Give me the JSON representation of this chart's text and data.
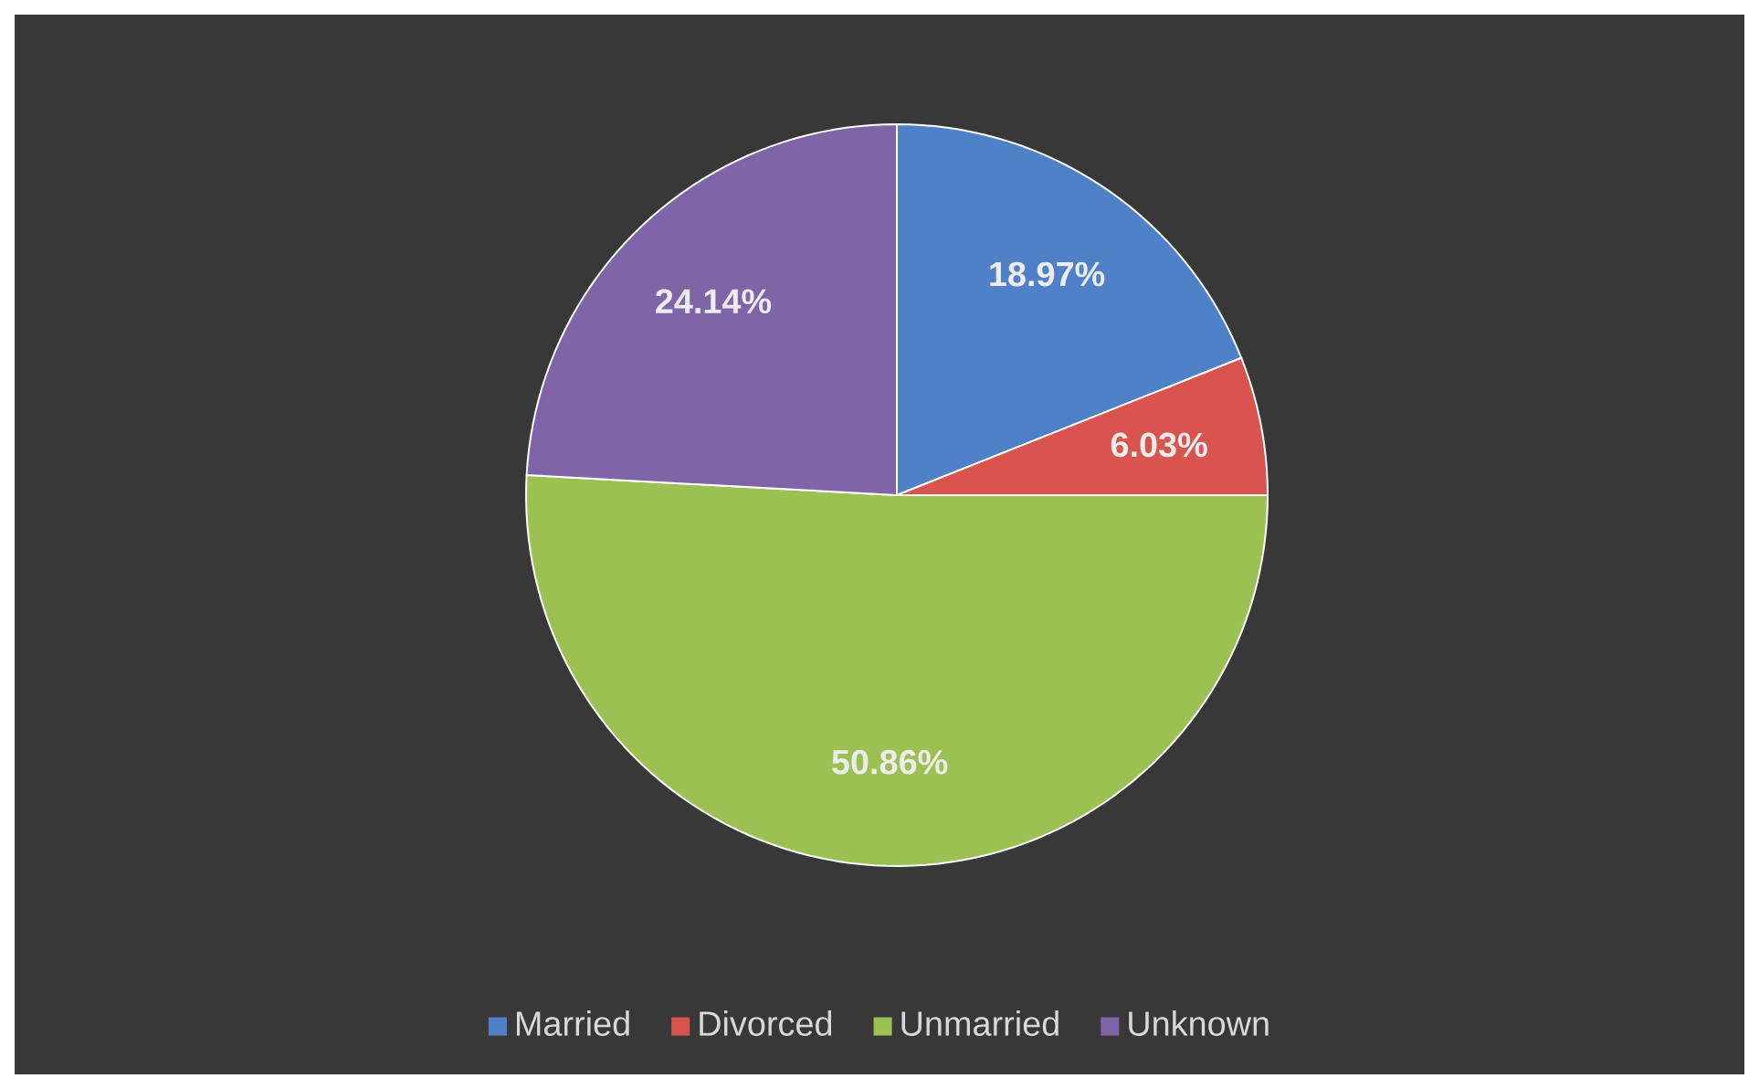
{
  "chart_data": {
    "type": "pie",
    "categories": [
      "Married",
      "Divorced",
      "Unmarried",
      "Unknown"
    ],
    "values": [
      18.97,
      6.03,
      50.86,
      24.14
    ],
    "colors": [
      "#4f81c9",
      "#d9534f",
      "#9bc153",
      "#8064a8"
    ],
    "value_labels": [
      "18.97%",
      "6.03%",
      "50.86%",
      "24.14%"
    ],
    "legend": "bottom"
  }
}
